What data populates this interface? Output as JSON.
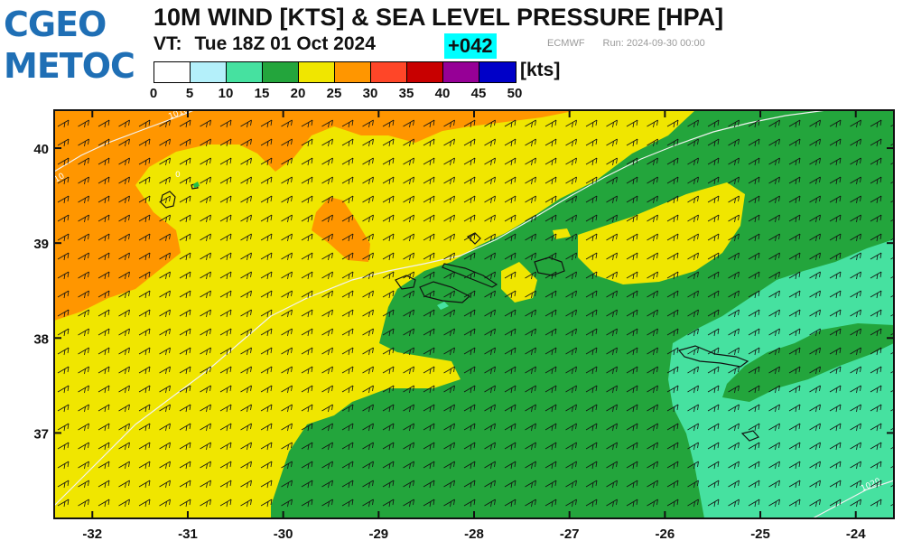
{
  "logo": {
    "line1": "CGEO",
    "line2": "METOC"
  },
  "header": {
    "title": "10M WIND [KTS] & SEA LEVEL PRESSURE [HPA]",
    "vt_label": "VT:",
    "valid_time": "Tue 18Z 01 Oct 2024",
    "forecast_hour": "+042",
    "model": "ECMWF",
    "run": "Run: 2024-09-30 00:00"
  },
  "colorbar": {
    "unit": "[kts]",
    "ticks": [
      "0",
      "5",
      "10",
      "15",
      "20",
      "25",
      "30",
      "35",
      "40",
      "45",
      "50"
    ],
    "colors": [
      "#ffffff",
      "#b4f0fa",
      "#46e1a0",
      "#23a53c",
      "#f0e600",
      "#ff9600",
      "#ff4628",
      "#c80000",
      "#960096",
      "#0000c8"
    ]
  },
  "map": {
    "lon_labels": [
      "-32",
      "-31",
      "-30",
      "-29",
      "-28",
      "-27",
      "-26",
      "-25",
      "-24"
    ],
    "lat_labels": [
      "40",
      "39",
      "38",
      "37"
    ],
    "lon_range": [
      -32.4,
      -23.6
    ],
    "lat_range": [
      36.1,
      40.4
    ],
    "wind_direction": "southwesterly",
    "isobars": [
      {
        "label": "1010",
        "value": 1010
      },
      {
        "label": "1015",
        "value": 1015
      },
      {
        "label": "1020",
        "value": 1020
      }
    ],
    "isobar_ticks": [
      {
        "label": "10"
      },
      {
        "label": "0"
      }
    ]
  }
}
